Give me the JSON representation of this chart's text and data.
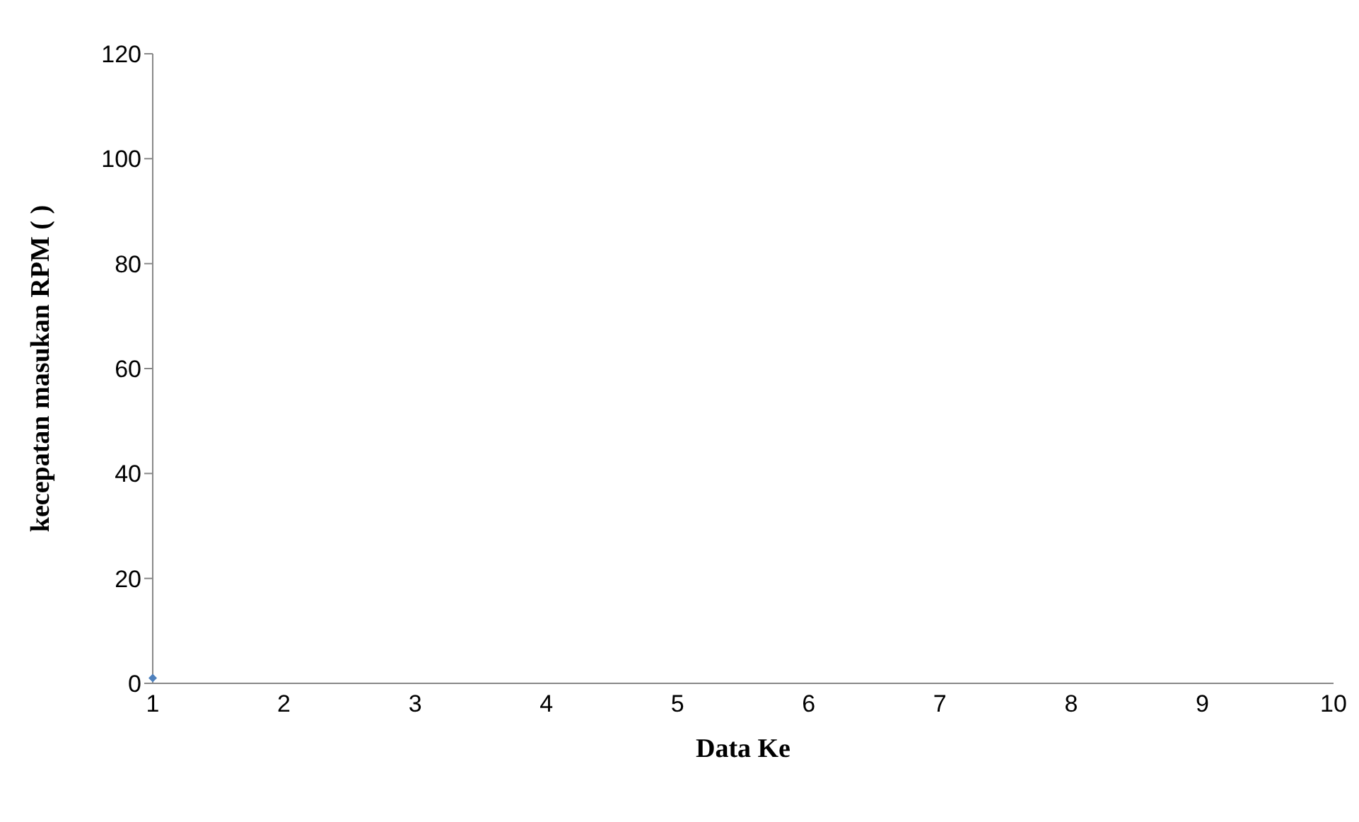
{
  "chart_data": {
    "type": "line",
    "xlabel": "Data Ke",
    "ylabel": "kecepatan masukan RPM ( )",
    "categories": [
      "1",
      "2",
      "3",
      "4",
      "5",
      "6",
      "7",
      "8",
      "9",
      "10"
    ],
    "series": [
      {
        "color": "#4f81bd",
        "values": [
          1,
          null,
          null,
          null,
          null,
          null,
          null,
          null,
          null,
          null
        ]
      }
    ],
    "ylim": [
      0,
      120
    ],
    "yticks": [
      0,
      20,
      40,
      60,
      80,
      100,
      120
    ],
    "grid": false,
    "legend": false,
    "marker": "diamond"
  }
}
